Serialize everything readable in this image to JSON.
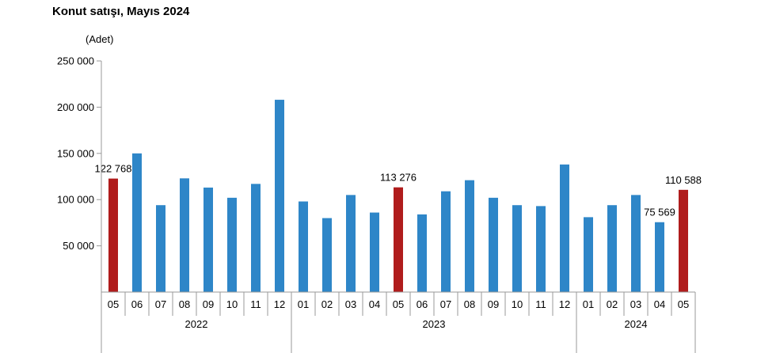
{
  "chart_data": {
    "type": "bar",
    "title": "Konut satışı, Mayıs 2024",
    "ylabel": "(Adet)",
    "ylim": [
      0,
      250000
    ],
    "yticks": [
      "250 000",
      "200 000",
      "150 000",
      "100 000",
      "50 000"
    ],
    "ytick_values": [
      250000,
      200000,
      150000,
      100000,
      50000
    ],
    "categories": [
      "05",
      "06",
      "07",
      "08",
      "09",
      "10",
      "11",
      "12",
      "01",
      "02",
      "03",
      "04",
      "05",
      "06",
      "07",
      "08",
      "09",
      "10",
      "11",
      "12",
      "01",
      "02",
      "03",
      "04",
      "05"
    ],
    "years": [
      {
        "label": "2022",
        "start": 0,
        "end": 7
      },
      {
        "label": "2023",
        "start": 8,
        "end": 19
      },
      {
        "label": "2024",
        "start": 20,
        "end": 24
      }
    ],
    "values": [
      122768,
      150000,
      94000,
      123000,
      113000,
      102000,
      117000,
      208000,
      98000,
      80000,
      105000,
      86000,
      113276,
      84000,
      109000,
      121000,
      102000,
      94000,
      93000,
      138000,
      81000,
      94000,
      105000,
      75569,
      110588
    ],
    "highlight_indices": [
      0,
      12,
      24
    ],
    "data_labels": [
      {
        "index": 0,
        "text": "122 768"
      },
      {
        "index": 12,
        "text": "113 276"
      },
      {
        "index": 23,
        "text": "75 569"
      },
      {
        "index": 24,
        "text": "110 588"
      }
    ],
    "colors": {
      "normal": "#2E86C8",
      "highlight": "#B01C1C",
      "axis": "#999999"
    }
  }
}
